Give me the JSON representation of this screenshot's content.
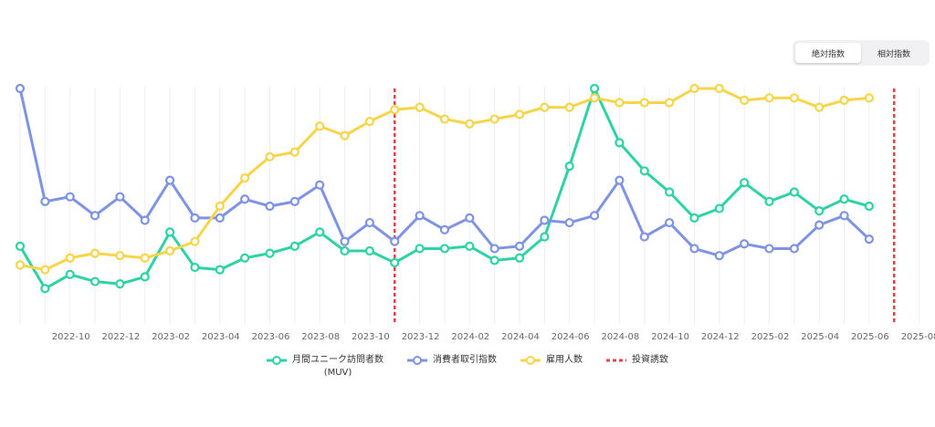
{
  "toggle": {
    "absolute_label": "絶対指数",
    "relative_label": "相対指数",
    "active": "absolute"
  },
  "colors": {
    "muv": "#2ed3a4",
    "consumer": "#7f93e6",
    "employment": "#f6d54a",
    "investment": "#e04646",
    "grid": "#eeeeee",
    "axis_text": "#666666"
  },
  "chart_data": {
    "type": "line",
    "x": [
      "2022-08",
      "2022-09",
      "2022-10",
      "2022-11",
      "2022-12",
      "2023-01",
      "2023-02",
      "2023-03",
      "2023-04",
      "2023-05",
      "2023-06",
      "2023-07",
      "2023-08",
      "2023-09",
      "2023-10",
      "2023-11",
      "2023-12",
      "2024-01",
      "2024-02",
      "2024-03",
      "2024-04",
      "2024-05",
      "2024-06",
      "2024-07",
      "2024-08",
      "2024-09",
      "2024-10",
      "2024-11",
      "2024-12",
      "2025-01",
      "2025-02",
      "2025-03",
      "2025-04",
      "2025-05",
      "2025-06"
    ],
    "x_tick_labels": [
      "2022-10",
      "2022-12",
      "2023-02",
      "2023-04",
      "2023-06",
      "2023-08",
      "2023-10",
      "2023-12",
      "2024-02",
      "2024-04",
      "2024-06",
      "2024-08",
      "2024-10",
      "2024-12",
      "2025-02",
      "2025-04",
      "2025-06",
      "2025-08"
    ],
    "x_ticks": [
      "2022-10",
      "2022-12",
      "2023-02",
      "2023-04",
      "2023-06",
      "2023-08",
      "2023-10",
      "2023-12",
      "2024-02",
      "2024-04",
      "2024-06",
      "2024-08",
      "2024-10",
      "2024-12",
      "2025-02",
      "2025-04",
      "2025-06",
      "2025-08"
    ],
    "x_range": [
      "2022-08",
      "2025-08"
    ],
    "ylim": [
      0,
      100
    ],
    "y_axis_labels": false,
    "grid": "vertical",
    "legend_position": "bottom",
    "series": [
      {
        "name": "月間ユニーク訪問者数",
        "name_line2": "(MUV)",
        "key": "muv",
        "values": [
          33,
          15,
          21,
          18,
          17,
          20,
          39,
          24,
          23,
          28,
          30,
          33,
          39,
          31,
          31,
          26,
          32,
          32,
          33,
          27,
          28,
          37,
          67,
          100,
          77,
          65,
          56,
          45,
          49,
          60,
          52,
          56,
          48,
          53,
          50
        ]
      },
      {
        "name": "消費者取引指数",
        "key": "consumer",
        "values": [
          100,
          52,
          54,
          46,
          54,
          44,
          61,
          45,
          45,
          53,
          50,
          52,
          59,
          35,
          43,
          35,
          46,
          40,
          45,
          32,
          33,
          44,
          43,
          46,
          61,
          37,
          43,
          32,
          29,
          34,
          32,
          32,
          42,
          46,
          36
        ]
      },
      {
        "name": "雇用人数",
        "key": "employment",
        "values": [
          25,
          23,
          28,
          30,
          29,
          28,
          31,
          35,
          50,
          62,
          71,
          73,
          84,
          80,
          86,
          91,
          92,
          87,
          85,
          87,
          89,
          92,
          92,
          96,
          94,
          94,
          94,
          100,
          100,
          95,
          96,
          96,
          92,
          95,
          96
        ]
      }
    ],
    "investment": {
      "name": "投資誘致",
      "dates": [
        "2023-11",
        "2025-07"
      ]
    }
  }
}
